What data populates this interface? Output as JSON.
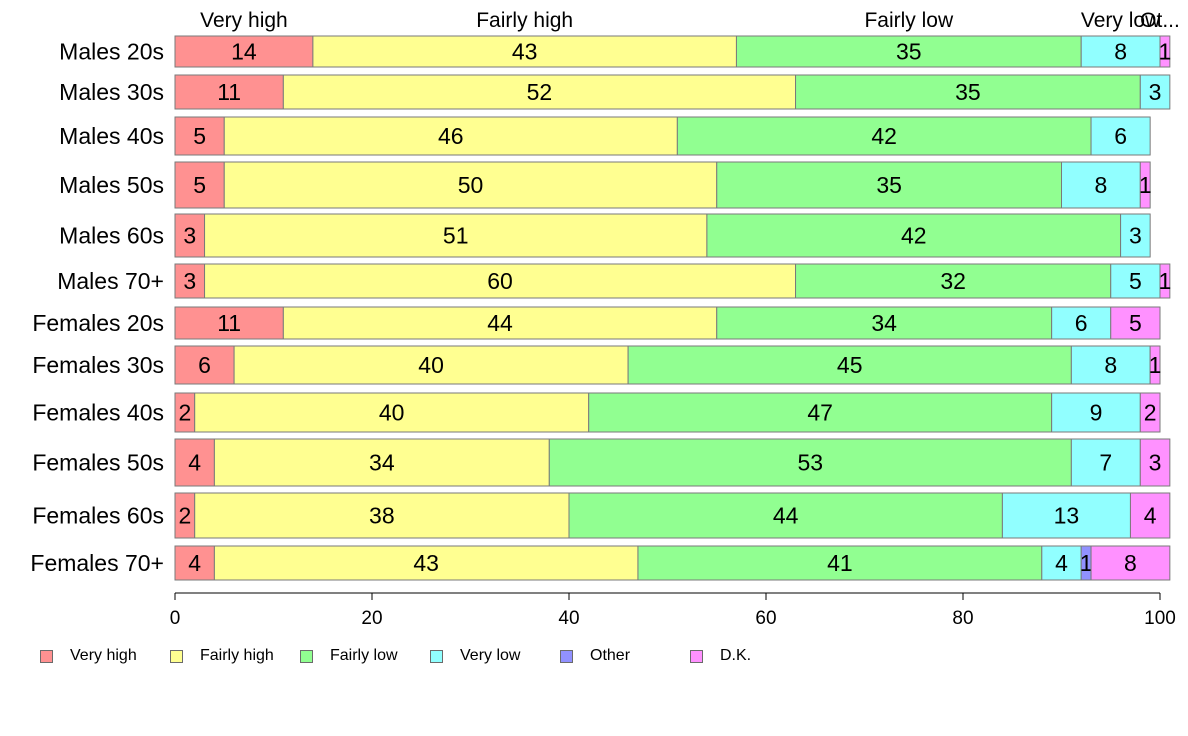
{
  "chart_data": {
    "type": "bar",
    "orientation": "horizontal",
    "stacked": true,
    "categories": [
      "Males 20s",
      "Males 30s",
      "Males 40s",
      "Males 50s",
      "Males 60s",
      "Males 70+",
      "Females 20s",
      "Females 30s",
      "Females 40s",
      "Females 50s",
      "Females 60s",
      "Females 70+"
    ],
    "series": [
      {
        "name": "Very high",
        "color": "#ff9191",
        "values": [
          14,
          11,
          5,
          5,
          3,
          3,
          11,
          6,
          2,
          4,
          2,
          4
        ]
      },
      {
        "name": "Fairly high",
        "color": "#ffff91",
        "values": [
          43,
          52,
          46,
          50,
          51,
          60,
          44,
          40,
          40,
          34,
          38,
          43
        ]
      },
      {
        "name": "Fairly low",
        "color": "#91ff91",
        "values": [
          35,
          35,
          42,
          35,
          42,
          32,
          34,
          45,
          47,
          53,
          44,
          41
        ]
      },
      {
        "name": "Very low",
        "color": "#91ffff",
        "values": [
          8,
          3,
          6,
          8,
          3,
          5,
          6,
          8,
          9,
          7,
          13,
          4
        ]
      },
      {
        "name": "Other",
        "color": "#9191ff",
        "values": [
          0,
          0,
          0,
          0,
          0,
          0,
          0,
          0,
          0,
          0,
          0,
          1
        ]
      },
      {
        "name": "D.K.",
        "color": "#ff91ff",
        "values": [
          1,
          0,
          0,
          1,
          0,
          1,
          5,
          1,
          2,
          3,
          4,
          8
        ]
      }
    ],
    "top_labels": [
      "Very high",
      "Fairly high",
      "Fairly low",
      "Very low",
      "Ot..."
    ],
    "xlim": [
      0,
      100
    ],
    "x_ticks": [
      "0",
      "20",
      "40",
      "60",
      "80",
      "100"
    ],
    "grid": false,
    "legend_position": "bottom"
  }
}
